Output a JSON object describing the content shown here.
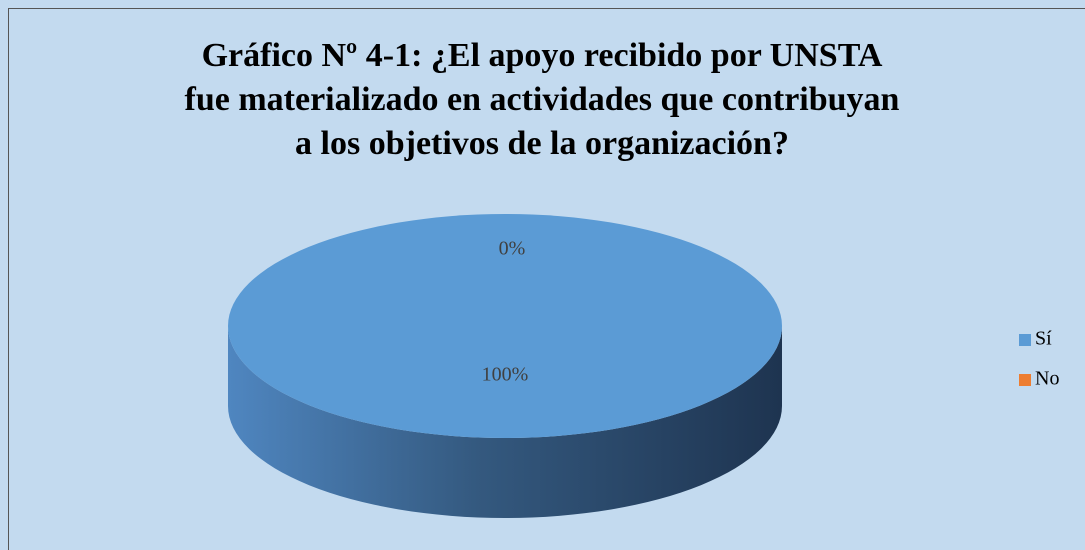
{
  "chart_data": {
    "type": "pie",
    "title": "Gráfico Nº 4-1: ¿El apoyo recibido por UNSTA fue materializado en actividades que contribuyan a los objetivos de la organización?",
    "categories": [
      "Sí",
      "No"
    ],
    "values": [
      100,
      0
    ],
    "value_labels": [
      "100%",
      "0%"
    ],
    "colors": [
      "#5b9bd5",
      "#ed7d31"
    ],
    "legend": "right"
  }
}
